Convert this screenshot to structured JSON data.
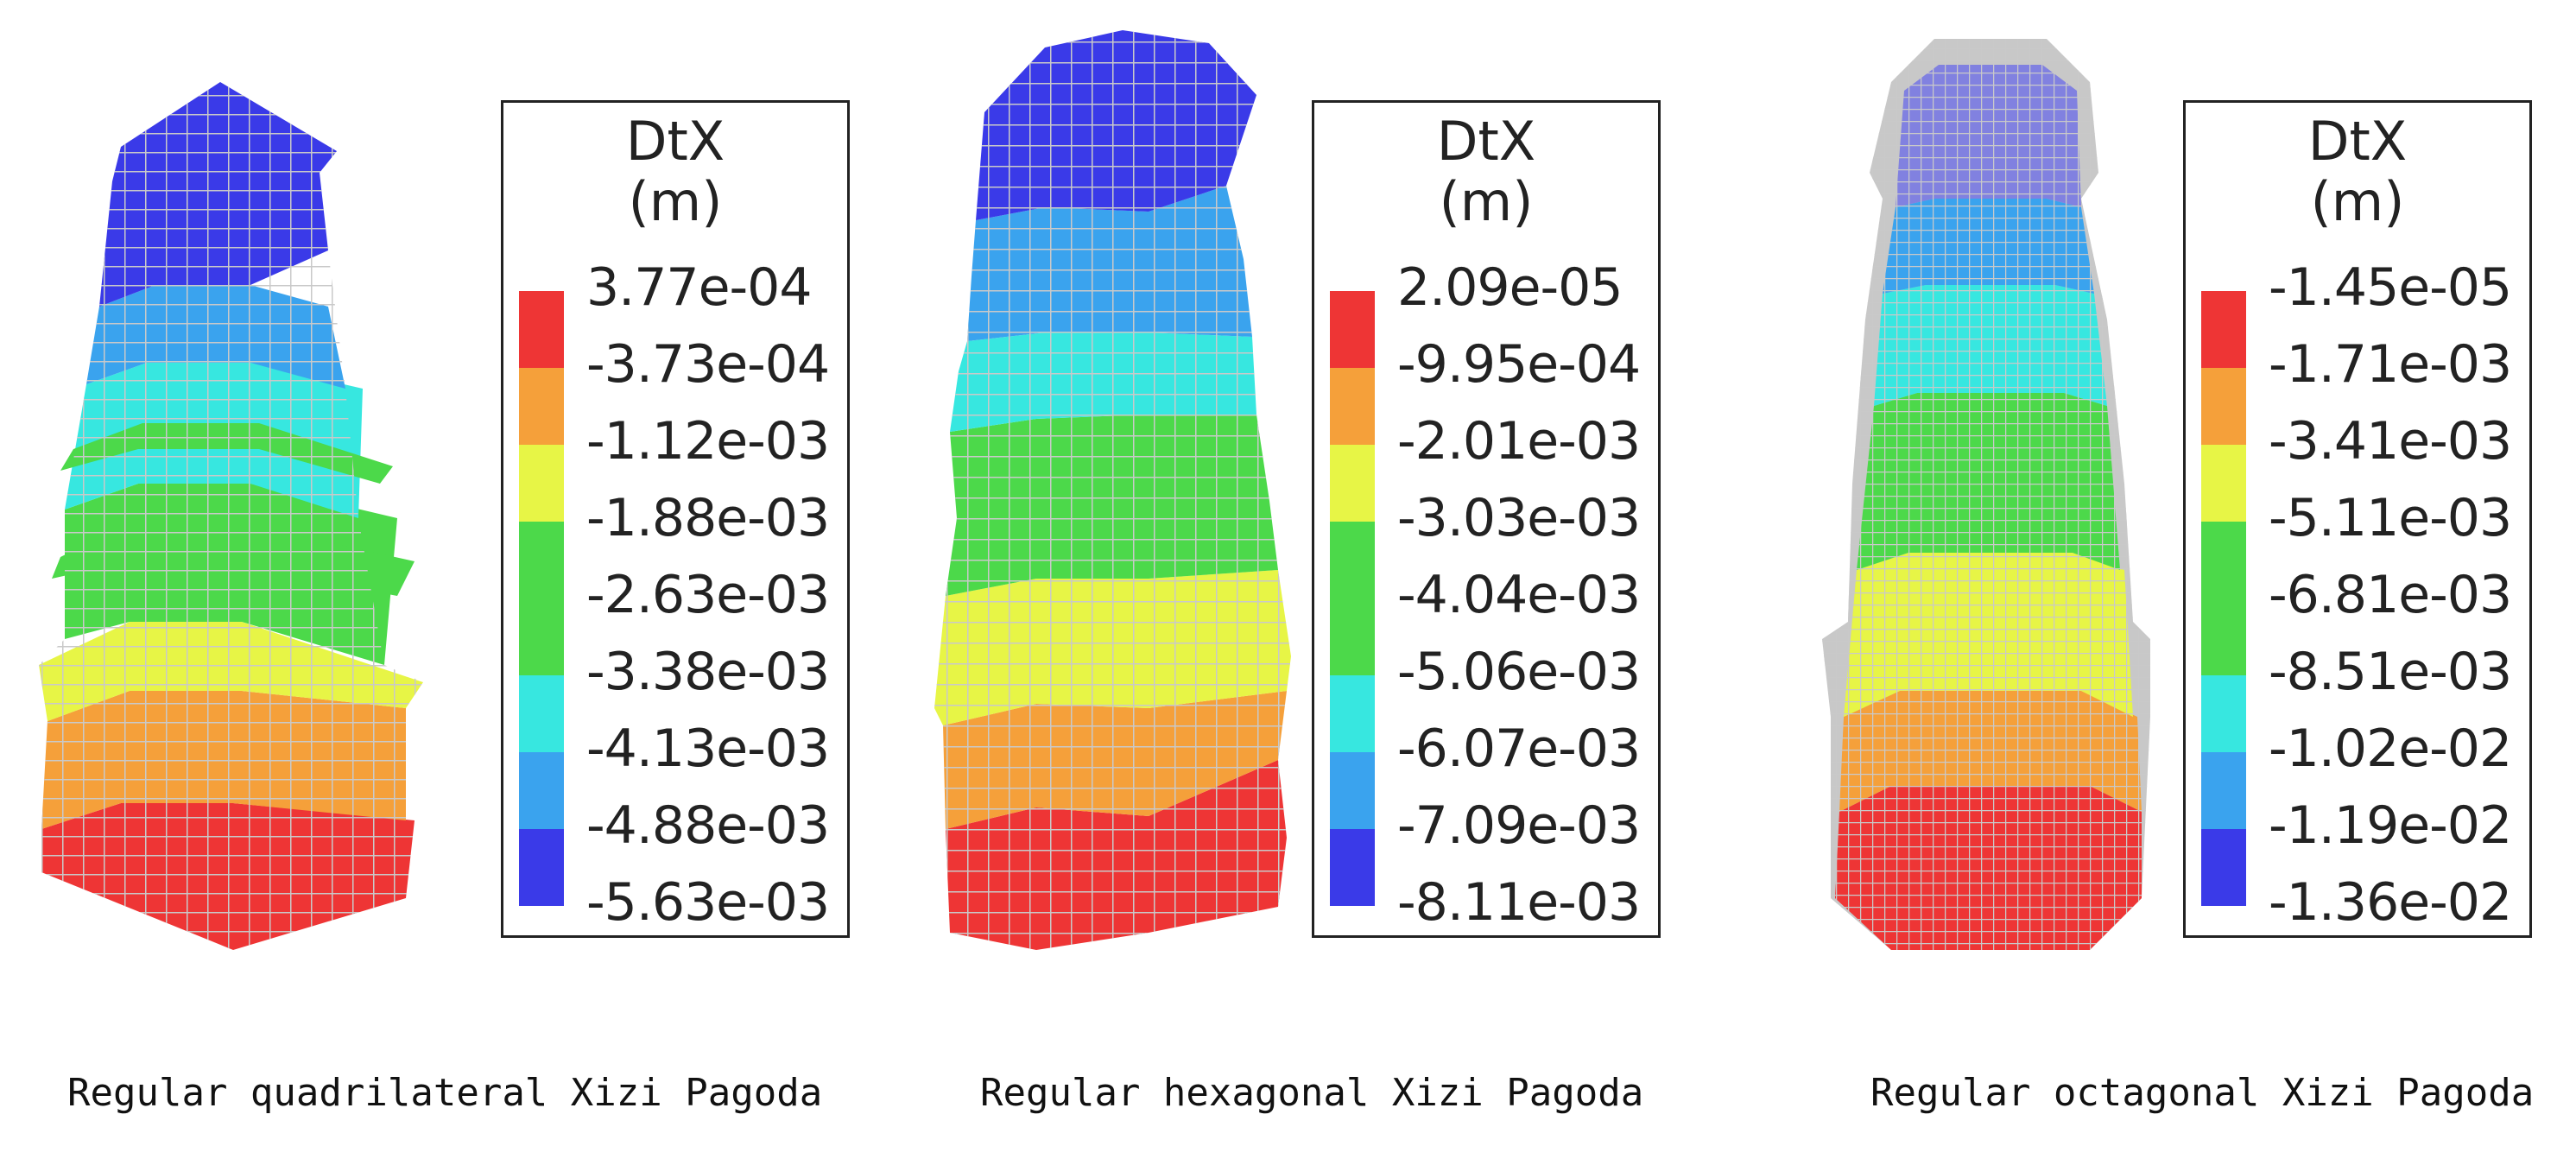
{
  "colors": {
    "red": "#ee3535",
    "orange": "#f5a03a",
    "yellow": "#e7f546",
    "green": "#4cd94a",
    "cyan": "#37e7e0",
    "lightblue": "#3aa3ee",
    "blue": "#3a3ae8",
    "grey": "#c8c8c8",
    "mesh": "#c9c9c9"
  },
  "legend_colors": [
    "#ee3535",
    "#f5a03a",
    "#e7f546",
    "#4cd94a",
    "#4cd94a",
    "#37e7e0",
    "#3aa3ee",
    "#3a3ae8"
  ],
  "panels": [
    {
      "legend": {
        "title_line1": "DtX",
        "title_line2": "(m)",
        "values": [
          "3.77e-04",
          "-3.73e-04",
          "-1.12e-03",
          "-1.88e-03",
          "-2.63e-03",
          "-3.38e-03",
          "-4.13e-03",
          "-4.88e-03",
          "-5.63e-03"
        ]
      },
      "caption": "Regular quadrilateral Xizi Pagoda"
    },
    {
      "legend": {
        "title_line1": "DtX",
        "title_line2": "(m)",
        "values": [
          "2.09e-05",
          "-9.95e-04",
          "-2.01e-03",
          "-3.03e-03",
          "-4.04e-03",
          "-5.06e-03",
          "-6.07e-03",
          "-7.09e-03",
          "-8.11e-03"
        ]
      },
      "caption": "Regular hexagonal Xizi Pagoda"
    },
    {
      "legend": {
        "title_line1": "DtX",
        "title_line2": "(m)",
        "values": [
          "-1.45e-05",
          "-1.71e-03",
          "-3.41e-03",
          "-5.11e-03",
          "-6.81e-03",
          "-8.51e-03",
          "-1.02e-02",
          "-1.19e-02",
          "-1.36e-02"
        ]
      },
      "caption": "Regular octagonal Xizi Pagoda"
    }
  ]
}
